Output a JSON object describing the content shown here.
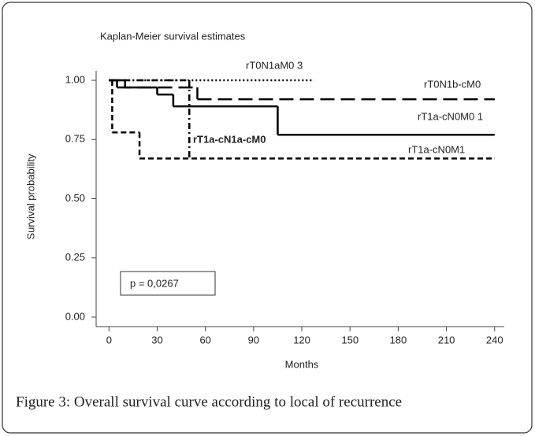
{
  "chart_data": {
    "type": "step-line",
    "title": "Kaplan-Meier survival estimates",
    "x_label": "Months",
    "y_label": "Survival probability",
    "annotation": "p = 0,0267",
    "caption": "Figure 3: Overall survival curve according to local of recurrence",
    "xlim": [
      -8,
      246
    ],
    "ylim": [
      -0.04,
      1.04
    ],
    "xticks": [
      0,
      30,
      60,
      90,
      120,
      150,
      180,
      210,
      240
    ],
    "yticks": [
      {
        "value": 0,
        "label": "0.00"
      },
      {
        "value": 0.25,
        "label": "0.25"
      },
      {
        "value": 0.5,
        "label": "0.50"
      },
      {
        "value": 0.75,
        "label": "0.75"
      },
      {
        "value": 1,
        "label": "1.00"
      }
    ],
    "series": [
      {
        "name": "rT0N1aM0 3",
        "color": "#000000",
        "dash": "dotted",
        "x": [
          0,
          127
        ],
        "values": [
          1,
          1
        ]
      },
      {
        "name": "rT0N1b-cM0",
        "color": "#000000",
        "dash": "long-dash",
        "x": [
          0,
          5,
          55,
          240
        ],
        "values": [
          1,
          0.97,
          0.92,
          0.92
        ]
      },
      {
        "name": "rT1a-cN0M0 1",
        "color": "#000000",
        "dash": "solid",
        "x": [
          0,
          10,
          30,
          40,
          105,
          240
        ],
        "values": [
          1,
          0.97,
          0.94,
          0.89,
          0.77,
          0.77
        ]
      },
      {
        "name": "rT1a-cN1a-cM0",
        "color": "#000000",
        "dash": "dash-dot",
        "x": [
          0,
          50
        ],
        "values": [
          1,
          0.67
        ]
      },
      {
        "name": "rT1a-cN0M1",
        "color": "#000000",
        "dash": "short-dash",
        "x": [
          0,
          2,
          19,
          240
        ],
        "values": [
          1,
          0.78,
          0.67,
          0.67
        ]
      }
    ]
  }
}
